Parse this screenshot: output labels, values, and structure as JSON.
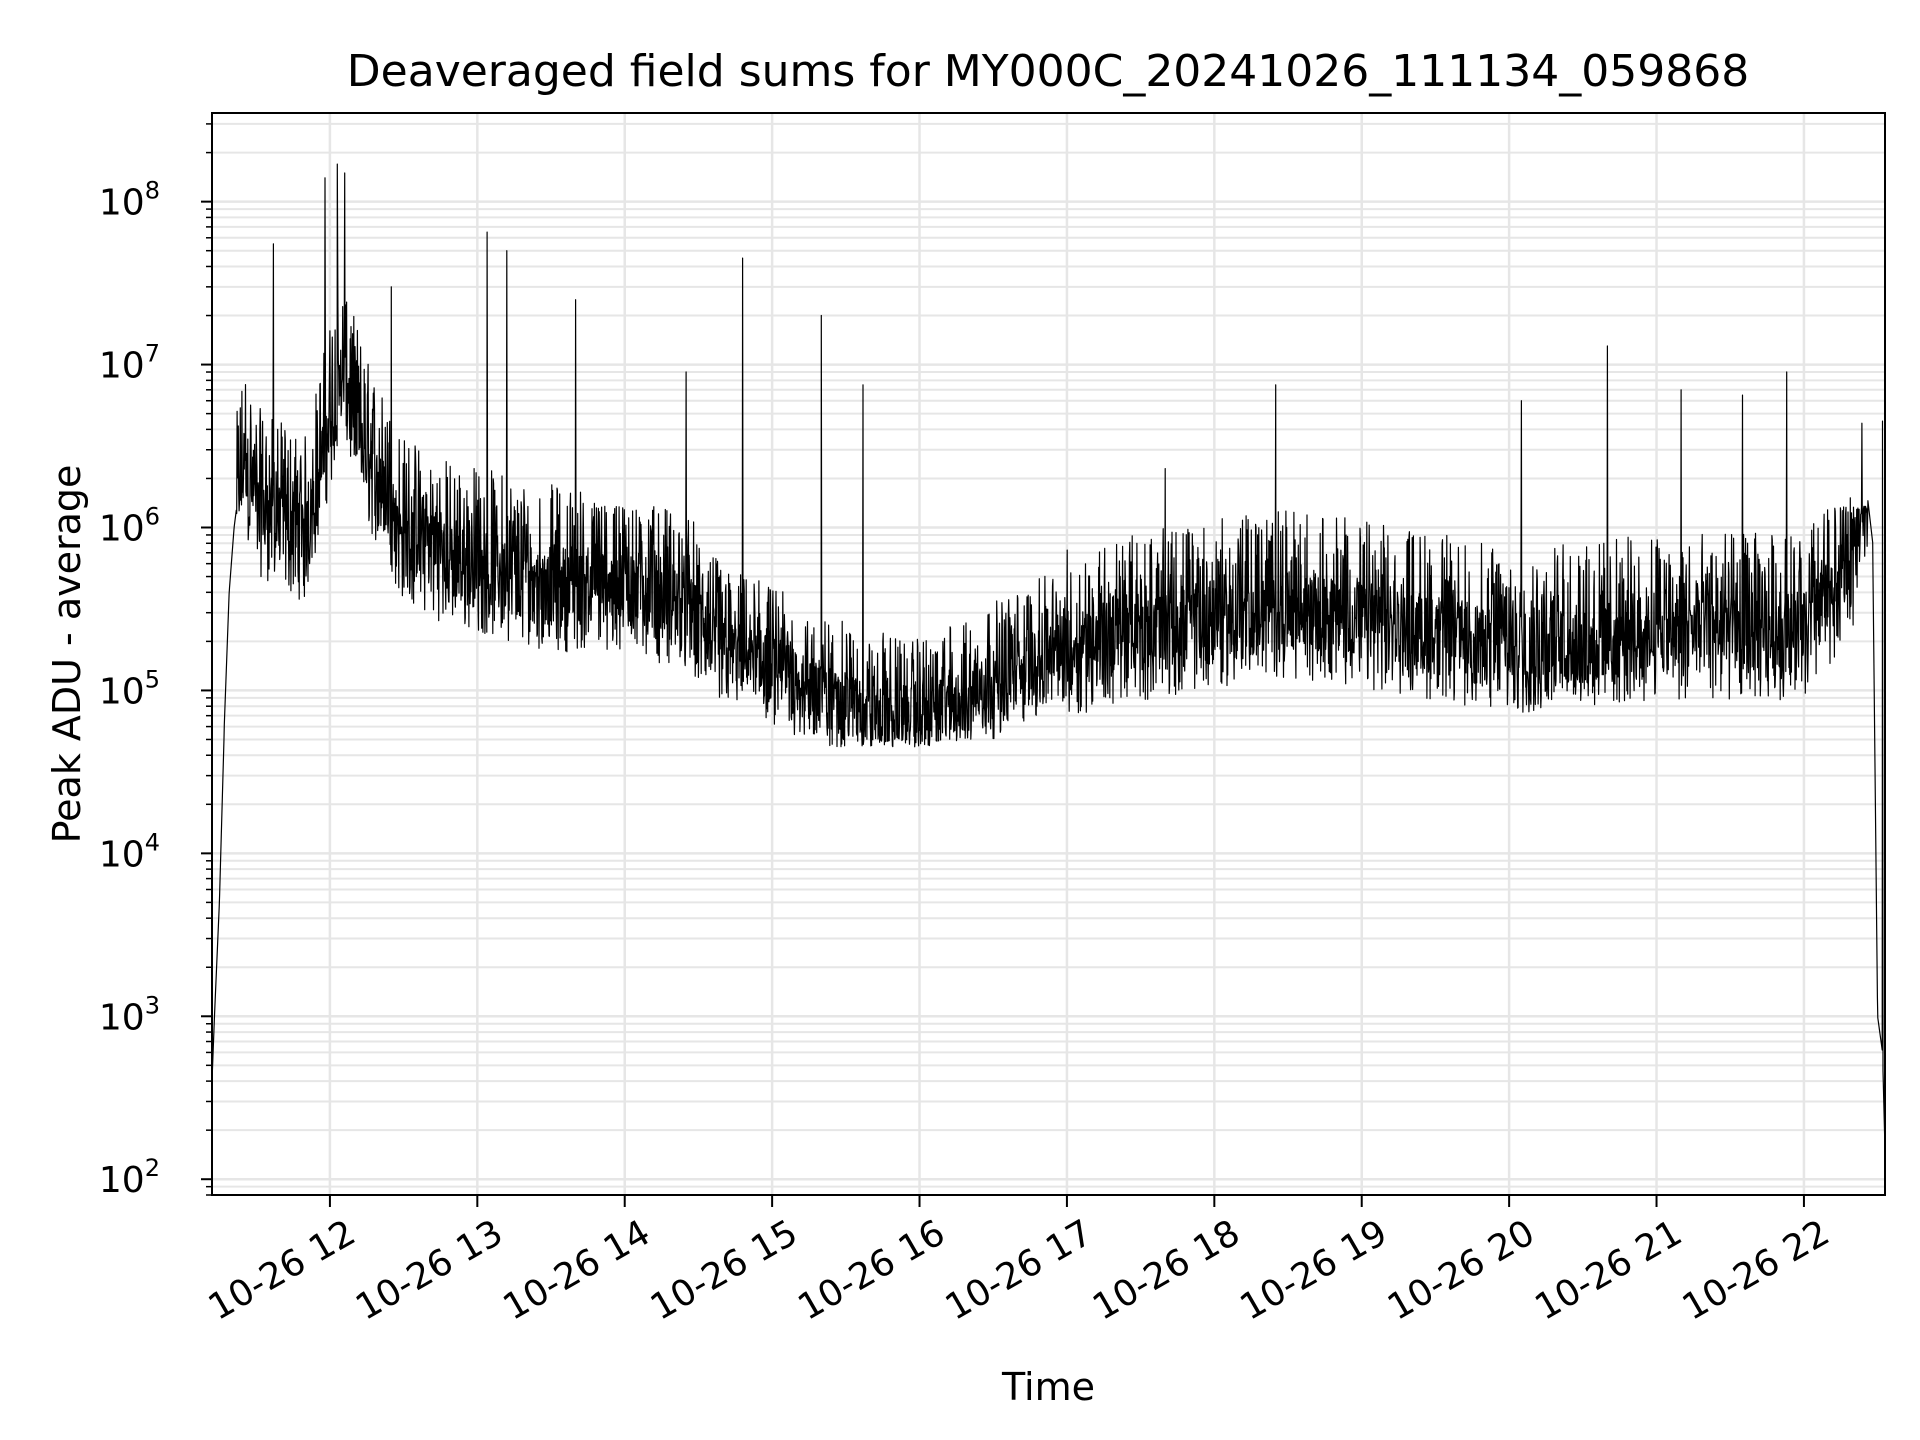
{
  "chart_data": {
    "type": "line",
    "title": "Deaveraged field sums for MY000C_20241026_111134_059868",
    "xlabel": "Time",
    "ylabel": "Peak ADU - average",
    "yscale": "log",
    "ylim": [
      80,
      350000000
    ],
    "xlim": [
      "2024-10-26 11:12",
      "2024-10-26 22:33"
    ],
    "grid": true,
    "grid_minor": true,
    "line_color": "#000000",
    "grid_color": "#e6e6e6",
    "x_ticks": [
      "10-26 12",
      "10-26 13",
      "10-26 14",
      "10-26 15",
      "10-26 16",
      "10-26 17",
      "10-26 18",
      "10-26 19",
      "10-26 20",
      "10-26 21",
      "10-26 22"
    ],
    "y_ticks": [
      {
        "base": "10",
        "exp": "2",
        "value": 100
      },
      {
        "base": "10",
        "exp": "3",
        "value": 1000
      },
      {
        "base": "10",
        "exp": "4",
        "value": 10000
      },
      {
        "base": "10",
        "exp": "5",
        "value": 100000
      },
      {
        "base": "10",
        "exp": "6",
        "value": 1000000
      },
      {
        "base": "10",
        "exp": "7",
        "value": 10000000
      },
      {
        "base": "10",
        "exp": "8",
        "value": 100000000
      }
    ],
    "series": [
      {
        "x": [
          "2024-10-26 11:12",
          "2024-10-26 11:13",
          "2024-10-26 11:15",
          "2024-10-26 11:17",
          "2024-10-26 11:19",
          "2024-10-26 11:21",
          "2024-10-26 11:25",
          "2024-10-26 11:30",
          "2024-10-26 11:40",
          "2024-10-26 11:50",
          "2024-10-26 12:00",
          "2024-10-26 12:05",
          "2024-10-26 12:15",
          "2024-10-26 12:30",
          "2024-10-26 12:50",
          "2024-10-26 13:10",
          "2024-10-26 13:30",
          "2024-10-26 13:45",
          "2024-10-26 14:00",
          "2024-10-26 14:20",
          "2024-10-26 14:40",
          "2024-10-26 15:00",
          "2024-10-26 15:20",
          "2024-10-26 15:40",
          "2024-10-26 16:00",
          "2024-10-26 16:30",
          "2024-10-26 17:00",
          "2024-10-26 17:30",
          "2024-10-26 18:00",
          "2024-10-26 18:30",
          "2024-10-26 19:00",
          "2024-10-26 19:30",
          "2024-10-26 20:00",
          "2024-10-26 20:30",
          "2024-10-26 21:00",
          "2024-10-26 21:30",
          "2024-10-26 22:00",
          "2024-10-26 22:10",
          "2024-10-26 22:20",
          "2024-10-26 22:25",
          "2024-10-26 22:28",
          "2024-10-26 22:30",
          "2024-10-26 22:32",
          "2024-10-26 22:33"
        ],
        "y": [
          400,
          1000,
          5000,
          60000,
          400000,
          1000000,
          3000000,
          1500000,
          1200000,
          1000000,
          5000000,
          10000000,
          3000000,
          1000000,
          700000,
          600000,
          500000,
          500000,
          500000,
          400000,
          200000,
          150000,
          100000,
          80000,
          70000,
          120000,
          200000,
          250000,
          300000,
          350000,
          300000,
          250000,
          200000,
          220000,
          250000,
          250000,
          250000,
          400000,
          700000,
          2000000,
          800000,
          1000,
          600,
          150
        ]
      }
    ],
    "peaks": [
      {
        "x": "2024-10-26 12:03",
        "y": 170000000
      },
      {
        "x": "2024-10-26 11:58",
        "y": 140000000
      },
      {
        "x": "2024-10-26 12:06",
        "y": 150000000
      },
      {
        "x": "2024-10-26 11:37",
        "y": 55000000
      },
      {
        "x": "2024-10-26 13:04",
        "y": 65000000
      },
      {
        "x": "2024-10-26 13:12",
        "y": 50000000
      },
      {
        "x": "2024-10-26 12:25",
        "y": 30000000
      },
      {
        "x": "2024-10-26 13:40",
        "y": 25000000
      },
      {
        "x": "2024-10-26 14:48",
        "y": 45000000
      },
      {
        "x": "2024-10-26 15:20",
        "y": 20000000
      },
      {
        "x": "2024-10-26 14:25",
        "y": 9000000
      },
      {
        "x": "2024-10-26 15:37",
        "y": 7500000
      },
      {
        "x": "2024-10-26 18:25",
        "y": 7500000
      },
      {
        "x": "2024-10-26 20:40",
        "y": 13000000
      },
      {
        "x": "2024-10-26 21:53",
        "y": 9000000
      },
      {
        "x": "2024-10-26 20:05",
        "y": 6000000
      },
      {
        "x": "2024-10-26 21:10",
        "y": 7000000
      },
      {
        "x": "2024-10-26 21:35",
        "y": 6500000
      },
      {
        "x": "2024-10-26 17:40",
        "y": 2300000
      },
      {
        "x": "2024-10-26 22:32",
        "y": 4500000
      }
    ]
  }
}
